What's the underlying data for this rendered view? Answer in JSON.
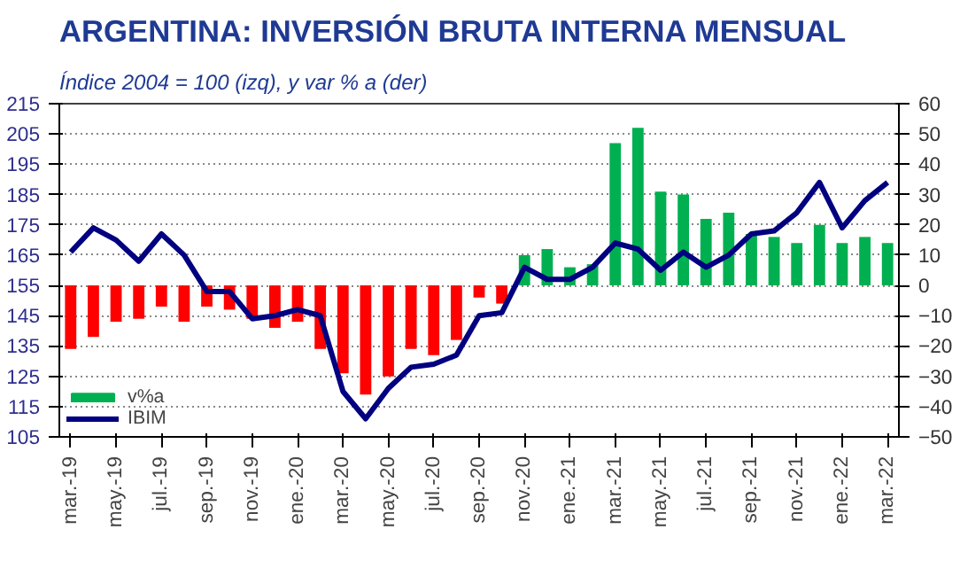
{
  "chart_data": {
    "type": "bar",
    "title": "ARGENTINA: INVERSIÓN BRUTA INTERNA MENSUAL",
    "subtitle": "Índice 2004 = 100 (izq), y var % a (der)",
    "categories": [
      "mar.-19",
      null,
      "may.-19",
      null,
      "jul.-19",
      null,
      "sep.-19",
      null,
      "nov.-19",
      null,
      "ene.-20",
      null,
      "mar.-20",
      null,
      "may.-20",
      null,
      "jul.-20",
      null,
      "sep.-20",
      null,
      "nov.-20",
      null,
      "ene.-21",
      null,
      "mar.-21",
      null,
      "may.-21",
      null,
      "jul.-21",
      null,
      "sep.-21",
      null,
      "nov.-21",
      null,
      "ene.-22",
      null,
      "mar.-22"
    ],
    "series": [
      {
        "name": "v%a",
        "axis": "y2",
        "colors": [
          "#ff0000",
          "#ff0000",
          "#ff0000",
          "#ff0000",
          "#ff0000",
          "#ff0000",
          "#ff0000",
          "#ff0000",
          "#ff0000",
          "#ff0000",
          "#ff0000",
          "#ff0000",
          "#ff0000",
          "#ff0000",
          "#ff0000",
          "#ff0000",
          "#ff0000",
          "#ff0000",
          "#ff0000",
          "#ff0000",
          "#00b050",
          "#00b050",
          "#00b050",
          "#00b050",
          "#00b050",
          "#00b050",
          "#00b050",
          "#00b050",
          "#00b050",
          "#00b050",
          "#00b050",
          "#00b050",
          "#00b050",
          "#00b050",
          "#00b050",
          "#00b050",
          "#00b050"
        ],
        "color": "#00b050",
        "values": [
          -21,
          -17,
          -12,
          -11,
          -7,
          -12,
          -7,
          -8,
          -11,
          -14,
          -12,
          -21,
          -29,
          -36,
          -30,
          -21,
          -23,
          -18,
          -4,
          -6,
          10,
          12,
          6,
          7,
          47,
          52,
          31,
          30,
          22,
          24,
          17,
          16,
          14,
          20,
          14,
          16,
          14
        ]
      },
      {
        "name": "IBIM",
        "type": "line",
        "color": "#000080",
        "values": [
          166,
          174,
          170,
          163,
          172,
          165,
          153,
          153,
          144,
          145,
          147,
          145,
          120,
          111,
          121,
          128,
          129,
          132,
          145,
          146,
          161,
          157,
          157,
          161,
          169,
          167,
          160,
          166,
          161,
          165,
          172,
          173,
          179,
          189,
          174,
          183,
          189
        ]
      }
    ],
    "ylim": [
      105,
      215
    ],
    "yticks": [
      105,
      115,
      125,
      135,
      145,
      155,
      165,
      175,
      185,
      195,
      205,
      215
    ],
    "y2lim": [
      -50,
      60
    ],
    "y2ticks": [
      -50,
      -40,
      -30,
      -20,
      -10,
      0,
      10,
      20,
      30,
      40,
      50,
      60
    ],
    "grid": "y",
    "legend": "bottom left",
    "line_style": "solid",
    "marker": "none"
  }
}
